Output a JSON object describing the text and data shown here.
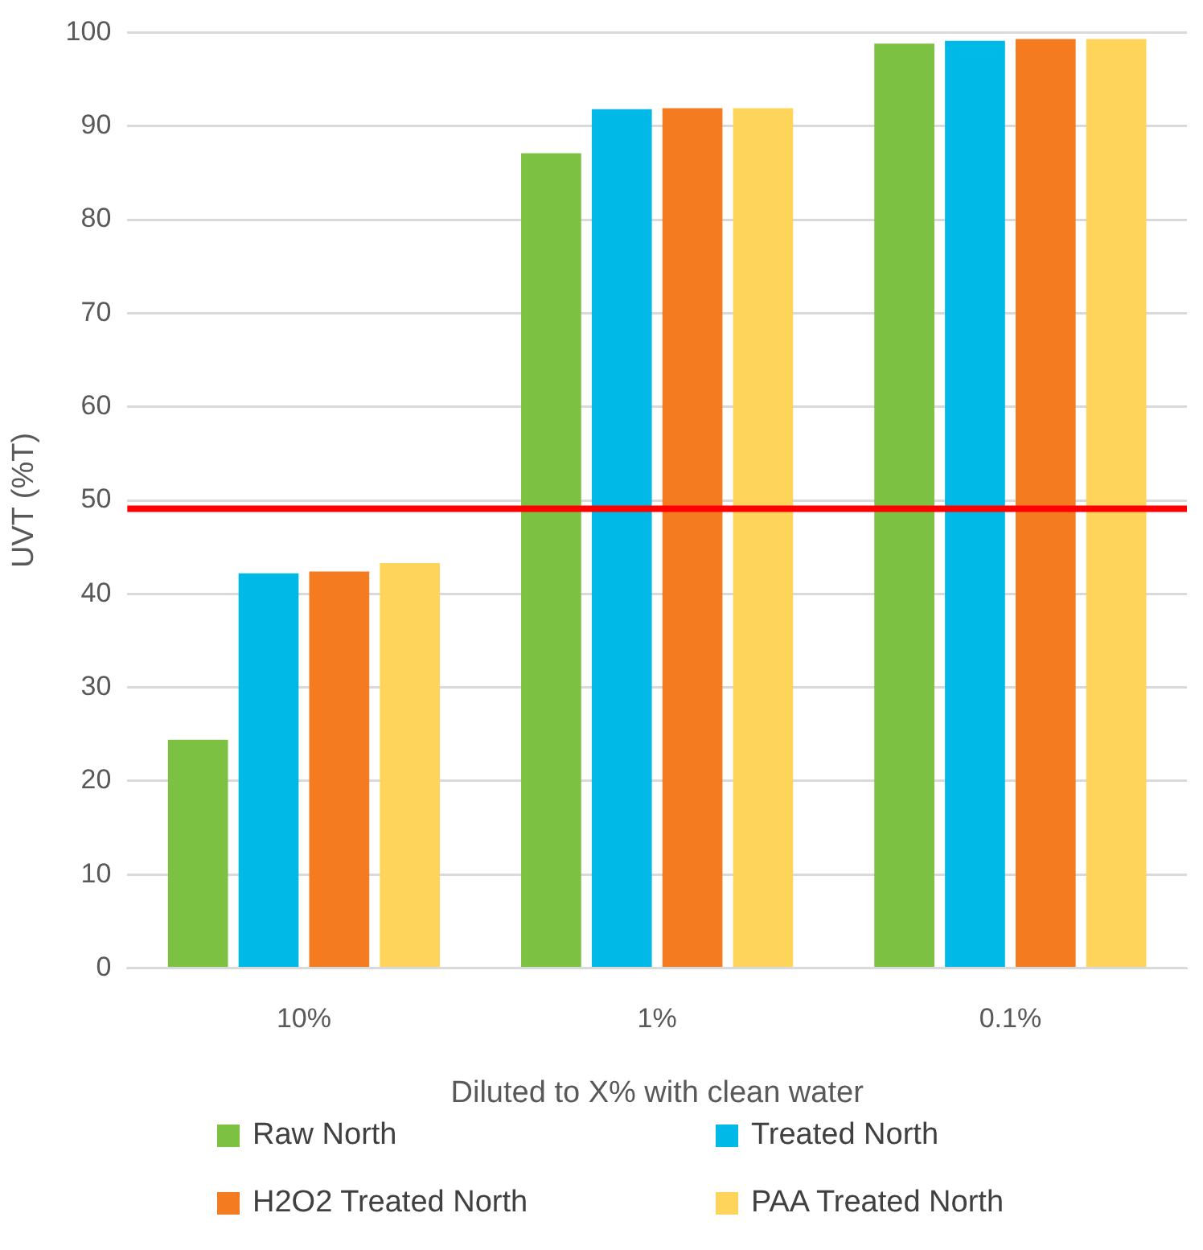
{
  "chart_data": {
    "type": "bar",
    "xlabel": "Diluted to X% with clean water",
    "ylabel": "UVT (%T)",
    "categories": [
      "10%",
      "1%",
      "0.1%"
    ],
    "series": [
      {
        "name": "Raw North",
        "color": "#7cc142",
        "values": [
          24.4,
          87.1,
          98.8
        ]
      },
      {
        "name": "Treated North",
        "color": "#00b9e6",
        "values": [
          42.2,
          91.8,
          99.1
        ]
      },
      {
        "name": "H2O2 Treated North",
        "color": "#f47b20",
        "values": [
          42.4,
          91.9,
          99.3
        ]
      },
      {
        "name": "PAA Treated North",
        "color": "#ffd45a",
        "values": [
          43.3,
          91.9,
          99.3
        ]
      }
    ],
    "ylim": [
      0,
      100
    ],
    "yticks": [
      0,
      10,
      20,
      30,
      40,
      50,
      60,
      70,
      80,
      90,
      100
    ],
    "grid": "y",
    "legend": "bottom",
    "ref_lines": [
      {
        "axis": "y",
        "value": 49.1,
        "color": "#ff0000"
      }
    ]
  }
}
